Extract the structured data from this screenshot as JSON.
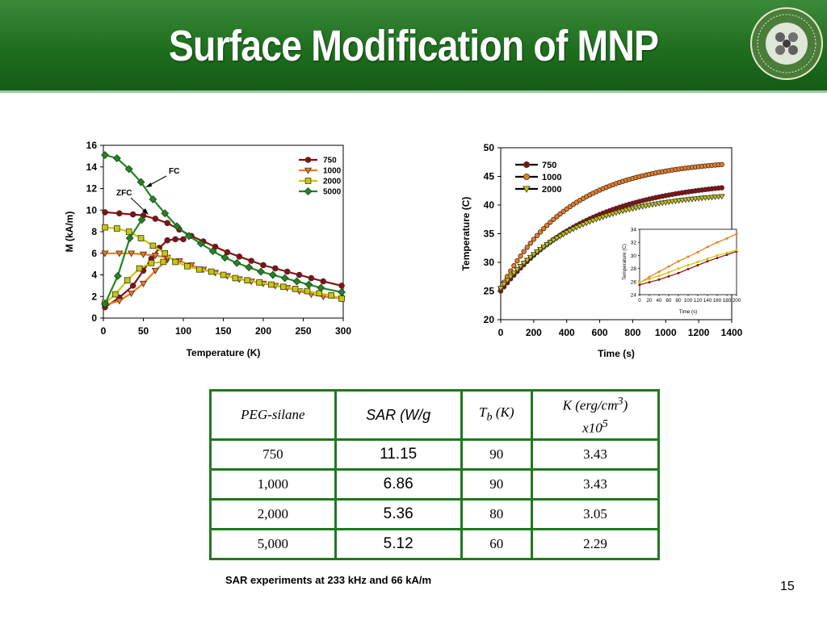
{
  "slide": {
    "title": "Surface Modification of MNP",
    "page_number": "15",
    "note": "SAR experiments at 233 kHz and 66 kA/m",
    "colors": {
      "header": "#1f6e1f",
      "table_border": "#1e7a1e"
    },
    "logo_icon": "university-seal-icon"
  },
  "table": {
    "headers": {
      "peg": "PEG-silane",
      "sar": "SAR (W/g",
      "tb": "T",
      "tb_sub": "b",
      "tb_unit": " (K)",
      "k_line1": "K (erg/cm",
      "k_sup1": "3",
      "k_close": ")",
      "k_line2": "x10",
      "k_sup2": "5"
    },
    "rows": [
      {
        "peg": "750",
        "sar": "11.15",
        "tb": "90",
        "k": "3.43"
      },
      {
        "peg": "1,000",
        "sar": "6.86",
        "tb": "90",
        "k": "3.43"
      },
      {
        "peg": "2,000",
        "sar": "5.36",
        "tb": "80",
        "k": "3.05"
      },
      {
        "peg": "5,000",
        "sar": "5.12",
        "tb": "60",
        "k": "2.29"
      }
    ]
  },
  "chart_data": [
    {
      "type": "line",
      "xlabel": "Temperature (K)",
      "ylabel": "M (kA/m)",
      "xlim": [
        0,
        300
      ],
      "ylim": [
        0,
        16
      ],
      "xticks": [
        0,
        50,
        100,
        150,
        200,
        250,
        300
      ],
      "yticks": [
        0,
        2,
        4,
        6,
        8,
        10,
        12,
        14,
        16
      ],
      "legend_position": "top-right",
      "annotations": [
        "FC",
        "ZFC"
      ],
      "series": [
        {
          "name": "750",
          "color": "#8b0e0e",
          "marker": "circle",
          "zfc": {
            "x": [
              2,
              20,
              37,
              50,
              60,
              70,
              80,
              90,
              100
            ],
            "y": [
              1.0,
              1.9,
              3.0,
              4.4,
              5.5,
              6.5,
              7.2,
              7.3,
              7.3
            ]
          },
          "fc": {
            "x": [
              2,
              20,
              37,
              50,
              65,
              80,
              95,
              110,
              125,
              140,
              155,
              170,
              185,
              200,
              215,
              230,
              245,
              260,
              275,
              298
            ],
            "y": [
              9.8,
              9.7,
              9.6,
              9.5,
              9.2,
              8.8,
              8.2,
              7.6,
              7.1,
              6.6,
              6.1,
              5.7,
              5.3,
              4.9,
              4.6,
              4.3,
              4.0,
              3.7,
              3.4,
              3.0
            ]
          }
        },
        {
          "name": "1000",
          "color": "#f07a1a",
          "marker": "triangle-down",
          "zfc": {
            "x": [
              2,
              20,
              35,
              50,
              65,
              80
            ],
            "y": [
              1.2,
              1.6,
              2.3,
              3.2,
              4.4,
              5.4
            ]
          },
          "fc": {
            "x": [
              2,
              20,
              35,
              50,
              65,
              80,
              95,
              110,
              125,
              140,
              155,
              170,
              185,
              200,
              215,
              230,
              245,
              260,
              275,
              298
            ],
            "y": [
              6.0,
              6.0,
              6.0,
              5.9,
              5.8,
              5.6,
              5.3,
              4.9,
              4.5,
              4.2,
              3.9,
              3.6,
              3.4,
              3.2,
              3.0,
              2.8,
              2.5,
              2.2,
              2.0,
              1.8
            ]
          }
        },
        {
          "name": "2000",
          "color": "#c8c800",
          "marker": "square",
          "zfc": {
            "x": [
              2,
              15,
              30,
              45,
              60,
              75
            ],
            "y": [
              1.4,
              2.2,
              3.5,
              4.6,
              5.1,
              5.2
            ]
          },
          "fc": {
            "x": [
              2,
              17,
              32,
              47,
              62,
              77,
              90,
              105,
              120,
              135,
              150,
              165,
              180,
              195,
              210,
              225,
              240,
              255,
              270,
              285,
              298
            ],
            "y": [
              8.4,
              8.3,
              8.0,
              7.4,
              6.7,
              6.0,
              5.2,
              4.8,
              4.5,
              4.3,
              4.0,
              3.7,
              3.5,
              3.3,
              3.1,
              2.9,
              2.7,
              2.5,
              2.3,
              2.1,
              1.8
            ]
          }
        },
        {
          "name": "5000",
          "color": "#1a8a1a",
          "marker": "diamond",
          "zfc": {
            "x": [
              2,
              18,
              33,
              48
            ],
            "y": [
              1.3,
              3.9,
              7.4,
              9.1
            ]
          },
          "fc": {
            "x": [
              2,
              17,
              32,
              47,
              62,
              77,
              92,
              107,
              122,
              137,
              152,
              167,
              182,
              197,
              212,
              227,
              242,
              257,
              272,
              298
            ],
            "y": [
              15.1,
              14.8,
              13.8,
              12.6,
              11.0,
              9.7,
              8.5,
              7.6,
              6.9,
              6.2,
              5.6,
              5.1,
              4.7,
              4.3,
              4.0,
              3.7,
              3.4,
              3.1,
              2.8,
              2.4
            ]
          }
        }
      ]
    },
    {
      "type": "line",
      "xlabel": "Time (s)",
      "ylabel": "Temperature (C)",
      "xlim": [
        0,
        1400
      ],
      "ylim": [
        20,
        50
      ],
      "xticks": [
        0,
        200,
        400,
        600,
        800,
        1000,
        1200,
        1400
      ],
      "yticks": [
        20,
        25,
        30,
        35,
        40,
        45,
        50
      ],
      "legend_position": "top-left",
      "series": [
        {
          "name": "750",
          "color": "#8b0e0e",
          "marker": "circle",
          "tau": 520,
          "t0": 25.0,
          "tinf": 44.5,
          "tend": 1350
        },
        {
          "name": "1000",
          "color": "#f07a1a",
          "marker": "circle",
          "tau": 420,
          "t0": 25.5,
          "tinf": 48.0,
          "tend": 1350
        },
        {
          "name": "2000",
          "color": "#c8c800",
          "marker": "triangle-down",
          "tau": 470,
          "t0": 25.5,
          "tinf": 42.5,
          "tend": 1350
        }
      ],
      "inset": {
        "xlabel": "Time (s)",
        "ylabel": "Temperature (C)",
        "xlim": [
          0,
          200
        ],
        "ylim": [
          24,
          34
        ],
        "xticks": [
          "0",
          "20",
          "40",
          "60",
          "80",
          "100",
          "120",
          "140",
          "160",
          "180",
          "200"
        ],
        "yticks": [
          24,
          26,
          28,
          30,
          32,
          34
        ],
        "series": [
          {
            "name": "750",
            "color": "#8b0e0e",
            "x": [
              0,
              20,
              40,
              60,
              80,
              100,
              120,
              140,
              160,
              180,
              200
            ],
            "y": [
              25.5,
              25.9,
              26.3,
              26.8,
              27.3,
              27.9,
              28.5,
              29.1,
              29.6,
              30.1,
              30.6
            ]
          },
          {
            "name": "1000",
            "color": "#f07a1a",
            "x": [
              0,
              20,
              40,
              60,
              80,
              100,
              120,
              140,
              160,
              180,
              200
            ],
            "y": [
              25.8,
              26.7,
              27.5,
              28.3,
              29.1,
              29.8,
              30.5,
              31.3,
              32.0,
              32.6,
              33.3
            ]
          },
          {
            "name": "2000",
            "color": "#c8c800",
            "x": [
              0,
              20,
              40,
              60,
              80,
              100,
              120,
              140,
              160,
              180,
              200
            ],
            "y": [
              25.9,
              26.4,
              26.9,
              27.4,
              28.0,
              28.5,
              29.0,
              29.5,
              30.0,
              30.4,
              30.8
            ]
          }
        ]
      }
    }
  ]
}
